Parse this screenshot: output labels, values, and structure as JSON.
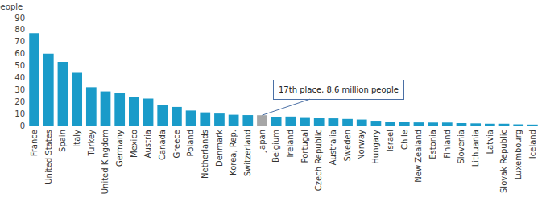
{
  "chart_data": {
    "type": "bar",
    "y_label": "one million people",
    "categories": [
      "France",
      "United States",
      "Spain",
      "Italy",
      "Turkey",
      "United Kingdom",
      "Germany",
      "Mexico",
      "Austria",
      "Canada",
      "Greece",
      "Poland",
      "Netherlands",
      "Denmark",
      "Korea, Rep.",
      "Switzerland",
      "Japan",
      "Belgium",
      "Ireland",
      "Portugal",
      "Czech Republic",
      "Australia",
      "Sweden",
      "Norway",
      "Hungary",
      "Israel",
      "Chile",
      "New Zealand",
      "Estonia",
      "Finland",
      "Slovenia",
      "Lithuania",
      "Latvia",
      "Slovak Republic",
      "Luxembourg",
      "Iceland"
    ],
    "values": [
      77,
      60,
      53,
      44,
      32,
      28.5,
      27.5,
      24,
      22.5,
      17,
      15.5,
      12.5,
      11,
      10,
      9,
      8.7,
      8.6,
      7.4,
      7.5,
      7,
      6.5,
      6,
      5.5,
      5,
      4,
      2.8,
      2.8,
      2.6,
      2.5,
      2.5,
      2,
      1.8,
      1.5,
      1.5,
      1,
      0.8
    ],
    "colors": [
      "#1a9bc9",
      "#1a9bc9",
      "#1a9bc9",
      "#1a9bc9",
      "#1a9bc9",
      "#1a9bc9",
      "#1a9bc9",
      "#1a9bc9",
      "#1a9bc9",
      "#1a9bc9",
      "#1a9bc9",
      "#1a9bc9",
      "#1a9bc9",
      "#1a9bc9",
      "#1a9bc9",
      "#1a9bc9",
      "#a6a6a6",
      "#1a9bc9",
      "#1a9bc9",
      "#1a9bc9",
      "#1a9bc9",
      "#1a9bc9",
      "#1a9bc9",
      "#1a9bc9",
      "#1a9bc9",
      "#1a9bc9",
      "#1a9bc9",
      "#1a9bc9",
      "#1a9bc9",
      "#1a9bc9",
      "#1a9bc9",
      "#1a9bc9",
      "#1a9bc9",
      "#1a9bc9",
      "#1a9bc9",
      "#1a9bc9"
    ],
    "ylim": [
      0,
      90
    ],
    "yticks": [
      0,
      10,
      20,
      30,
      40,
      50,
      60,
      70,
      80,
      90
    ],
    "grid": false,
    "annotations": [
      {
        "text": "17th place, 8.6 million people",
        "category": "Japan"
      }
    ]
  }
}
